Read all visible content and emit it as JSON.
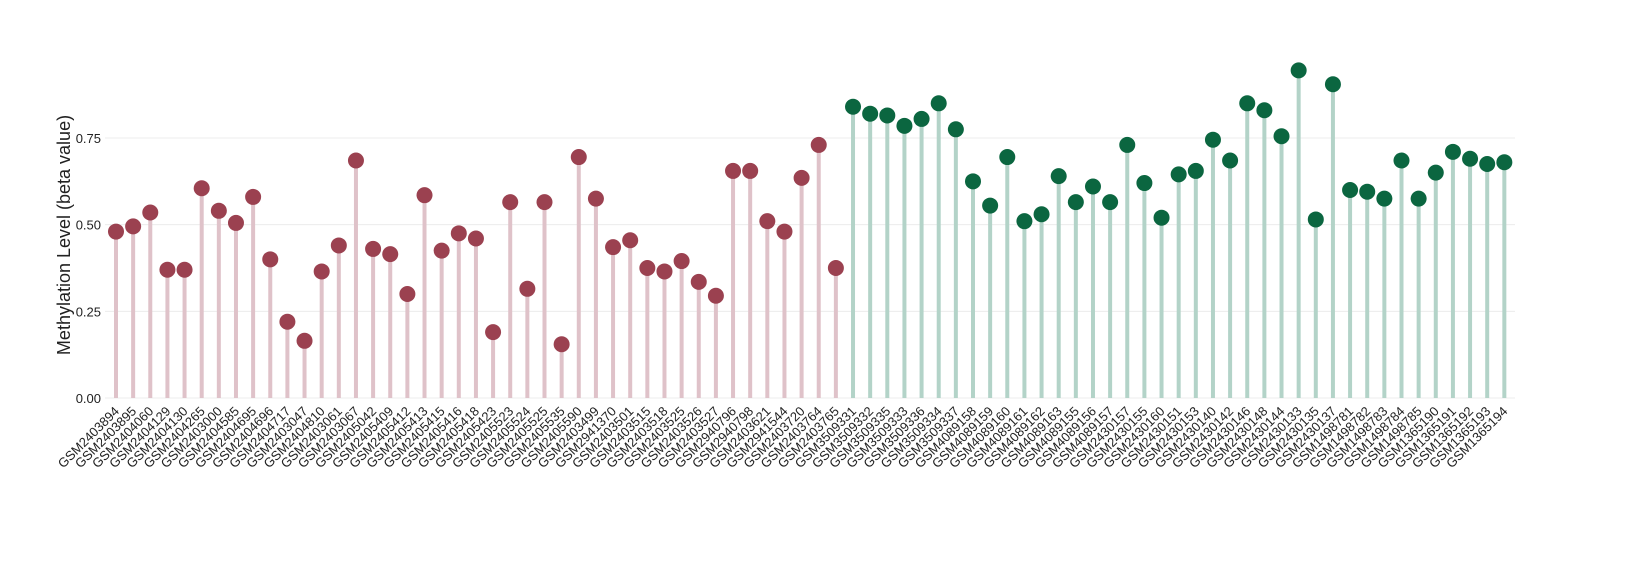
{
  "chart_data": {
    "type": "lollipop",
    "y_label": "Methylation Level (beta value)",
    "ylim": [
      0,
      0.97
    ],
    "yticks": [
      {
        "value": 0,
        "label": "0.00"
      },
      {
        "value": 0.25,
        "label": "0.25"
      },
      {
        "value": 0.5,
        "label": "0.50"
      },
      {
        "value": 0.75,
        "label": "0.75"
      }
    ],
    "grid": true,
    "series": [
      {
        "color": "#9b4150",
        "stem_color": "#dfc2c9",
        "categories": [
          "GSM2403894",
          "GSM2403895",
          "GSM2404060",
          "GSM2404129",
          "GSM2404130",
          "GSM2404265",
          "GSM2403000",
          "GSM2404585",
          "GSM2404695",
          "GSM2404696",
          "GSM2404717",
          "GSM2403047",
          "GSM2404810",
          "GSM2403061",
          "GSM2403067",
          "GSM2405042",
          "GSM2405409",
          "GSM2405412",
          "GSM2405413",
          "GSM2405415",
          "GSM2405416",
          "GSM2405418",
          "GSM2405423",
          "GSM2405523",
          "GSM2405524",
          "GSM2405525",
          "GSM2405535",
          "GSM2405590",
          "GSM2403499",
          "GSM2941370",
          "GSM2403501",
          "GSM2403515",
          "GSM2403518",
          "GSM2403525",
          "GSM2403526",
          "GSM2403527",
          "GSM2940796",
          "GSM2940798",
          "GSM2403621",
          "GSM2941544",
          "GSM2403720",
          "GSM2403764",
          "GSM2403765"
        ],
        "values": [
          0.48,
          0.495,
          0.535,
          0.37,
          0.37,
          0.605,
          0.54,
          0.505,
          0.58,
          0.4,
          0.22,
          0.165,
          0.365,
          0.44,
          0.685,
          0.43,
          0.415,
          0.3,
          0.585,
          0.425,
          0.475,
          0.46,
          0.19,
          0.565,
          0.315,
          0.565,
          0.155,
          0.695,
          0.575,
          0.435,
          0.455,
          0.375,
          0.365,
          0.395,
          0.335,
          0.295,
          0.655,
          0.655,
          0.51,
          0.48,
          0.635,
          0.73,
          0.375
        ]
      },
      {
        "color": "#0b6640",
        "stem_color": "#b3d3c8",
        "categories": [
          "GSM3509331",
          "GSM3509332",
          "GSM3509335",
          "GSM3509333",
          "GSM3509336",
          "GSM3509334",
          "GSM3509337",
          "GSM4089158",
          "GSM4089159",
          "GSM4089160",
          "GSM4089161",
          "GSM4089162",
          "GSM4089163",
          "GSM4089155",
          "GSM4089156",
          "GSM4089157",
          "GSM2430157",
          "GSM2430155",
          "GSM2430160",
          "GSM2430151",
          "GSM2430153",
          "GSM2430140",
          "GSM2430142",
          "GSM2430146",
          "GSM2430148",
          "GSM2430144",
          "GSM2430133",
          "GSM2430135",
          "GSM2430137",
          "GSM1498781",
          "GSM1498782",
          "GSM1498783",
          "GSM1498784",
          "GSM1498785",
          "GSM1365190",
          "GSM1365191",
          "GSM1365192",
          "GSM1365193",
          "GSM1365194"
        ],
        "values": [
          0.84,
          0.82,
          0.815,
          0.785,
          0.805,
          0.85,
          0.775,
          0.625,
          0.555,
          0.695,
          0.51,
          0.53,
          0.64,
          0.565,
          0.61,
          0.565,
          0.73,
          0.62,
          0.52,
          0.645,
          0.655,
          0.745,
          0.685,
          0.85,
          0.83,
          0.755,
          0.945,
          0.515,
          0.905,
          0.6,
          0.595,
          0.575,
          0.685,
          0.575,
          0.65,
          0.71,
          0.69,
          0.675,
          0.68
        ]
      }
    ]
  }
}
